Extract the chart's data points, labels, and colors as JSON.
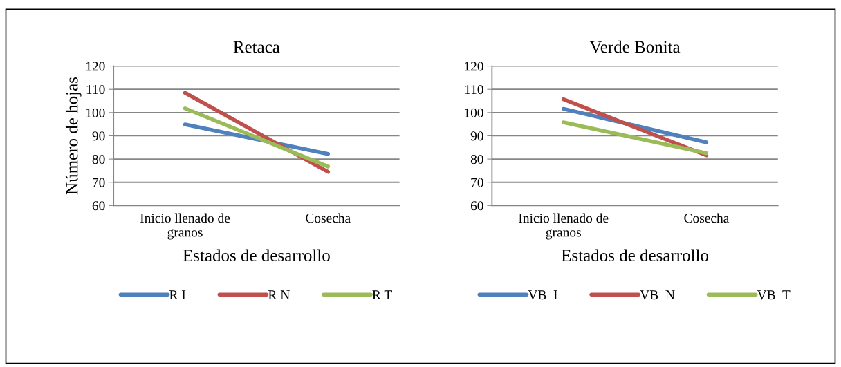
{
  "chart_data": [
    {
      "type": "line",
      "title": "Retaca",
      "xlabel": "Estados de desarrollo",
      "ylabel": "Número de hojas",
      "categories": [
        "Inicio llenado de\ngranos",
        "Cosecha"
      ],
      "ylim": [
        60,
        120
      ],
      "yticks": [
        60,
        70,
        80,
        90,
        100,
        110,
        120
      ],
      "grid": "y",
      "legend": "bottom",
      "marker": "none",
      "line_style": "solid",
      "series": [
        {
          "name": "R I",
          "color": "#4f81bd",
          "values": [
            94.9,
            82.2
          ]
        },
        {
          "name": "R N",
          "color": "#c0504d",
          "values": [
            108.5,
            74.5
          ]
        },
        {
          "name": "R T",
          "color": "#9bbb59",
          "values": [
            101.8,
            76.8
          ]
        }
      ]
    },
    {
      "type": "line",
      "title": "Verde Bonita",
      "xlabel": "Estados de desarrollo",
      "categories": [
        "Inicio llenado de\ngranos",
        "Cosecha"
      ],
      "ylim": [
        60,
        120
      ],
      "yticks": [
        60,
        70,
        80,
        90,
        100,
        110,
        120
      ],
      "grid": "y",
      "legend": "bottom",
      "marker": "none",
      "line_style": "solid",
      "series": [
        {
          "name": "VB  I",
          "color": "#4f81bd",
          "values": [
            101.6,
            87.2
          ]
        },
        {
          "name": "VB  N",
          "color": "#c0504d",
          "values": [
            105.7,
            81.6
          ]
        },
        {
          "name": "VB  T",
          "color": "#9bbb59",
          "values": [
            95.8,
            82.5
          ]
        }
      ]
    }
  ]
}
